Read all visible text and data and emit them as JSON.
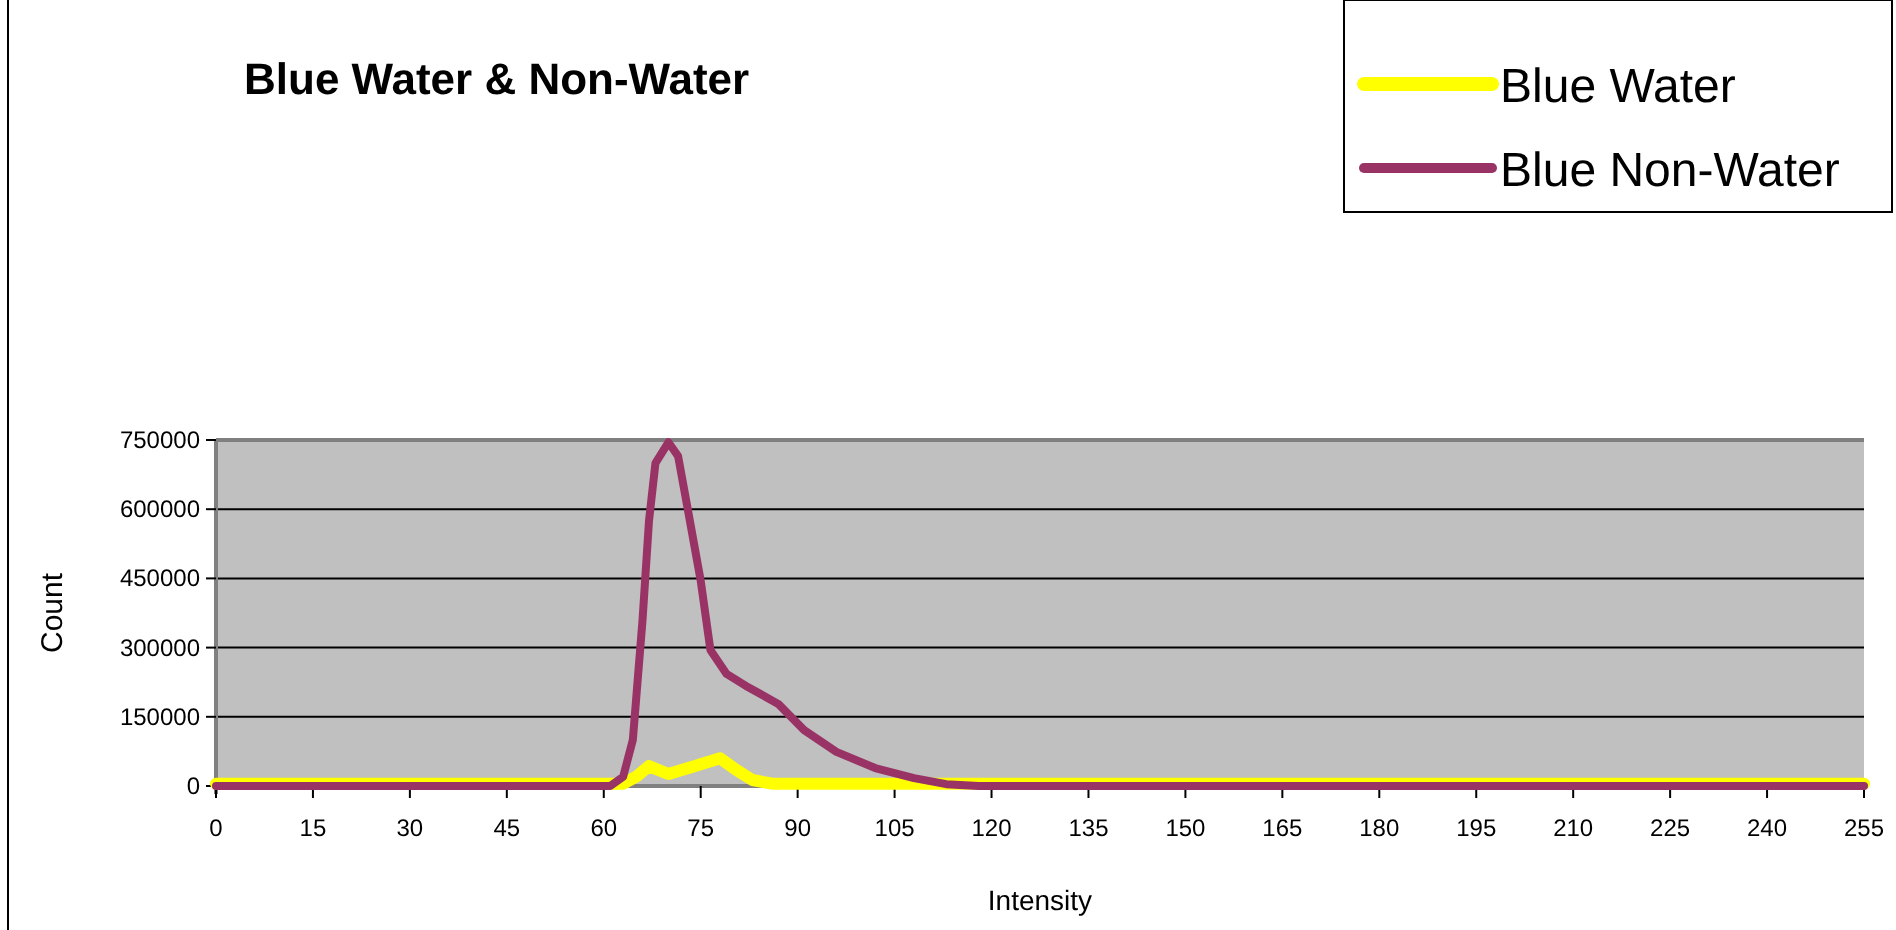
{
  "chart_data": {
    "type": "line",
    "title": "Blue Water & Non-Water",
    "xlabel": "Intensity",
    "ylabel": "Count",
    "xlim": [
      0,
      255
    ],
    "xticks": [
      0,
      15,
      30,
      45,
      60,
      75,
      90,
      105,
      120,
      135,
      150,
      165,
      180,
      195,
      210,
      225,
      240,
      255
    ],
    "ylim": [
      0,
      750000
    ],
    "yticks": [
      0,
      150000,
      300000,
      450000,
      600000,
      750000
    ],
    "grid": "y",
    "legend": "top right",
    "marker": "none",
    "line_style": "solid",
    "series": [
      {
        "name": "Blue Water",
        "color": "#ffff00",
        "x": [
          0,
          60,
          63,
          65,
          67,
          70,
          74,
          78,
          80.5,
          83,
          86,
          112,
          255
        ],
        "values": [
          5000,
          5000,
          5000,
          20000,
          43000,
          26000,
          43000,
          60000,
          35000,
          13000,
          5000,
          5000,
          5000
        ]
      },
      {
        "name": "Blue Non-Water",
        "color": "#993366",
        "x": [
          0,
          61,
          63,
          64.5,
          66,
          67,
          68,
          70,
          71.5,
          73,
          75,
          76.5,
          79,
          82,
          87,
          91,
          96,
          102,
          108,
          113,
          118,
          255
        ],
        "values": [
          0,
          0,
          20000,
          100000,
          360000,
          575000,
          700000,
          745000,
          715000,
          600000,
          445000,
          295000,
          243000,
          217000,
          178000,
          121000,
          74000,
          39000,
          17000,
          4000,
          0,
          0
        ]
      }
    ]
  }
}
